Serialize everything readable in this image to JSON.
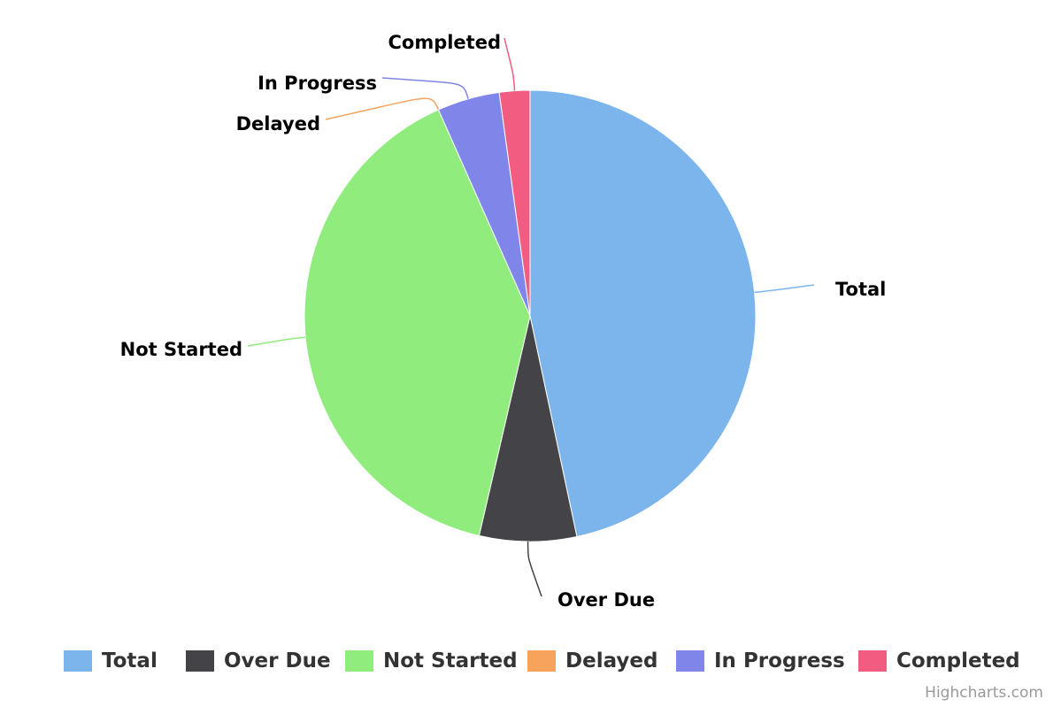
{
  "chart_data": {
    "type": "pie",
    "title": "",
    "categories": [
      "Total",
      "Over Due",
      "Not Started",
      "Delayed",
      "In Progress",
      "Completed"
    ],
    "values": [
      47,
      7,
      40,
      0,
      4.5,
      2.2
    ],
    "colors": [
      "#7cb5ec",
      "#434348",
      "#90ed7d",
      "#f7a35c",
      "#8085e9",
      "#f15c80"
    ],
    "legend_position": "bottom-center"
  },
  "legend": {
    "items": [
      "Total",
      "Over Due",
      "Not Started",
      "Delayed",
      "In Progress",
      "Completed"
    ]
  },
  "credits": "Highcharts.com"
}
